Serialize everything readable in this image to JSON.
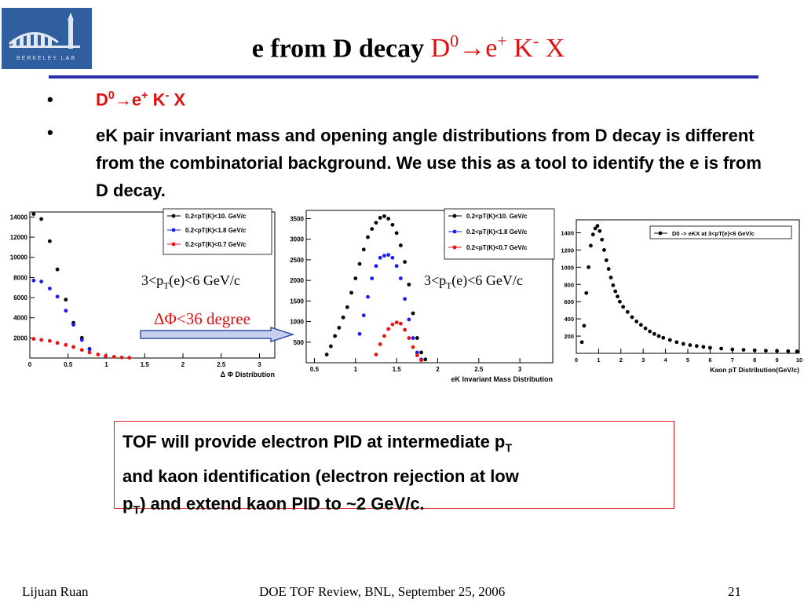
{
  "slide": {
    "title_black": "e from D decay ",
    "title_red_d": "D",
    "title_red_sup0": "0",
    "title_red_arrow": "→",
    "title_red_e": "e",
    "title_red_plus": "+",
    "title_red_k": " K",
    "title_red_minus": "-",
    "title_red_x": " X",
    "bullet_char": "•",
    "bullet1_d": "D",
    "bullet1_sup0": "0",
    "bullet1_arrow": "→",
    "bullet1_e": "e",
    "bullet1_plus": "+",
    "bullet1_k": " K",
    "bullet1_minus": "-",
    "bullet1_x": " X",
    "bullet2": "eK pair invariant mass and opening angle distributions from D decay is different from the combinatorial background. We use this as a tool to identify the e is from D decay.",
    "tof_line1": "TOF will provide electron PID at intermediate p",
    "tof_sub_t1": "T",
    "tof_line2": "and kaon identification (electron rejection at low",
    "tof_p": "p",
    "tof_sub_t2": "T",
    "tof_line3": ") and extend kaon PID to ~2 GeV/c.",
    "annotation1": "3<p",
    "annotation1_sub": "T",
    "annotation1_rest": "(e)<6 GeV/c",
    "annotation2": "3<p",
    "annotation2_sub": "T",
    "annotation2_rest": "(e)<6 GeV/c",
    "delta_label": "ΔΦ<36 degree",
    "footer_left": "Lijuan Ruan",
    "footer_center": "DOE TOF Review, BNL, September 25, 2006",
    "footer_right": "21"
  },
  "chart_data": [
    {
      "type": "scatter",
      "xlabel": "Δ Φ Distribution",
      "xlim": [
        0,
        3.2
      ],
      "ylim": [
        0,
        14500
      ],
      "xticks": [
        0,
        0.5,
        1,
        1.5,
        2,
        2.5,
        3
      ],
      "xtick_labels": [
        "0",
        "0.5",
        "1",
        "1.5",
        "2",
        "2.5",
        "3"
      ],
      "yticks": [
        2000,
        4000,
        6000,
        8000,
        10000,
        12000,
        14000
      ],
      "ytick_labels": [
        "2000",
        "4000",
        "6000",
        "8000",
        "10000",
        "12000",
        "14000"
      ],
      "legend_position": "top-right",
      "series": [
        {
          "name": "0.2<p_T(K)<10. GeV/c",
          "color": "#000000",
          "x": [
            0.05,
            0.15,
            0.26,
            0.36,
            0.47,
            0.57,
            0.68,
            0.78
          ],
          "y": [
            14300,
            13800,
            11600,
            8800,
            5800,
            3500,
            2000,
            900
          ]
        },
        {
          "name": "0.2<p_T(K)<1.8 GeV/c",
          "color": "#1a1aff",
          "x": [
            0.05,
            0.15,
            0.26,
            0.36,
            0.47,
            0.57,
            0.68,
            0.78
          ],
          "y": [
            7700,
            7600,
            6900,
            6100,
            4700,
            3300,
            1800,
            850
          ]
        },
        {
          "name": "0.2<p_T(K)<0.7 GeV/c",
          "color": "#ee1111",
          "x": [
            0.05,
            0.15,
            0.26,
            0.36,
            0.47,
            0.57,
            0.68,
            0.78,
            0.89,
            0.99,
            1.1,
            1.2,
            1.3
          ],
          "y": [
            1900,
            1800,
            1700,
            1500,
            1300,
            1100,
            800,
            550,
            350,
            200,
            120,
            60,
            30
          ]
        }
      ]
    },
    {
      "type": "scatter",
      "xlabel": "eK Invariant Mass Distribution",
      "xlim": [
        0.4,
        3.4
      ],
      "ylim": [
        0,
        3700
      ],
      "xticks": [
        0.5,
        1,
        1.5,
        2,
        2.5,
        3
      ],
      "xtick_labels": [
        "0.5",
        "1",
        "1.5",
        "2",
        "2.5",
        "3"
      ],
      "yticks": [
        500,
        1000,
        1500,
        2000,
        2500,
        3000,
        3500
      ],
      "ytick_labels": [
        "500",
        "1000",
        "1500",
        "2000",
        "2500",
        "3000",
        "3500"
      ],
      "legend_position": "top-right",
      "series": [
        {
          "name": "0.2<p_T(K)<10. GeV/c",
          "color": "#000000",
          "x": [
            0.65,
            0.7,
            0.75,
            0.8,
            0.85,
            0.9,
            0.95,
            1.0,
            1.05,
            1.1,
            1.15,
            1.2,
            1.25,
            1.3,
            1.35,
            1.4,
            1.45,
            1.5,
            1.55,
            1.6,
            1.65,
            1.7,
            1.75,
            1.8,
            1.85
          ],
          "y": [
            200,
            400,
            650,
            850,
            1100,
            1350,
            1700,
            2050,
            2400,
            2750,
            3050,
            3250,
            3400,
            3520,
            3560,
            3500,
            3350,
            3150,
            2850,
            2450,
            1900,
            1200,
            600,
            250,
            80
          ]
        },
        {
          "name": "0.2<p_T(K)<1.8 GeV/c",
          "color": "#1a1aff",
          "x": [
            1.05,
            1.1,
            1.15,
            1.2,
            1.25,
            1.3,
            1.35,
            1.4,
            1.45,
            1.5,
            1.55,
            1.6,
            1.65,
            1.7,
            1.75,
            1.8
          ],
          "y": [
            700,
            1150,
            1600,
            2050,
            2350,
            2550,
            2600,
            2620,
            2550,
            2350,
            2050,
            1550,
            1050,
            600,
            250,
            80
          ]
        },
        {
          "name": "0.2<p_T(K)<0.7 GeV/c",
          "color": "#ee1111",
          "x": [
            1.25,
            1.3,
            1.35,
            1.4,
            1.45,
            1.5,
            1.55,
            1.6,
            1.65,
            1.7,
            1.75,
            1.8
          ],
          "y": [
            200,
            450,
            650,
            820,
            930,
            980,
            950,
            800,
            600,
            380,
            180,
            60
          ]
        }
      ]
    },
    {
      "type": "scatter",
      "xlabel": "Kaon p_T Distribution(GeV/c)",
      "xlim": [
        0,
        10
      ],
      "ylim": [
        0,
        1550
      ],
      "xticks": [
        0,
        1,
        2,
        3,
        4,
        5,
        6,
        7,
        8,
        9,
        10
      ],
      "xtick_labels": [
        "0",
        "1",
        "2",
        "3",
        "4",
        "5",
        "6",
        "7",
        "8",
        "9",
        "10"
      ],
      "yticks": [
        200,
        400,
        600,
        800,
        1000,
        1200,
        1400
      ],
      "ytick_labels": [
        "200",
        "400",
        "600",
        "800",
        "1000",
        "1200",
        "1400"
      ],
      "legend_position": "top-right",
      "series": [
        {
          "name": "D^0 -> eKX at 3<p_T(e)<6 GeV/c",
          "color": "#000000",
          "x": [
            0.25,
            0.35,
            0.45,
            0.55,
            0.65,
            0.75,
            0.85,
            0.95,
            1.05,
            1.15,
            1.25,
            1.35,
            1.45,
            1.55,
            1.65,
            1.75,
            1.85,
            1.95,
            2.1,
            2.3,
            2.5,
            2.7,
            2.9,
            3.1,
            3.3,
            3.5,
            3.7,
            3.9,
            4.2,
            4.5,
            4.8,
            5.1,
            5.4,
            5.7,
            6.0,
            6.5,
            7.0,
            7.5,
            8.0,
            8.5,
            9.0,
            9.5,
            9.9
          ],
          "y": [
            130,
            320,
            700,
            1000,
            1250,
            1380,
            1450,
            1480,
            1420,
            1320,
            1200,
            1080,
            980,
            880,
            790,
            720,
            660,
            600,
            540,
            480,
            420,
            370,
            330,
            290,
            255,
            225,
            200,
            180,
            155,
            130,
            110,
            95,
            85,
            75,
            65,
            55,
            45,
            40,
            35,
            30,
            28,
            25,
            22
          ]
        }
      ]
    }
  ]
}
